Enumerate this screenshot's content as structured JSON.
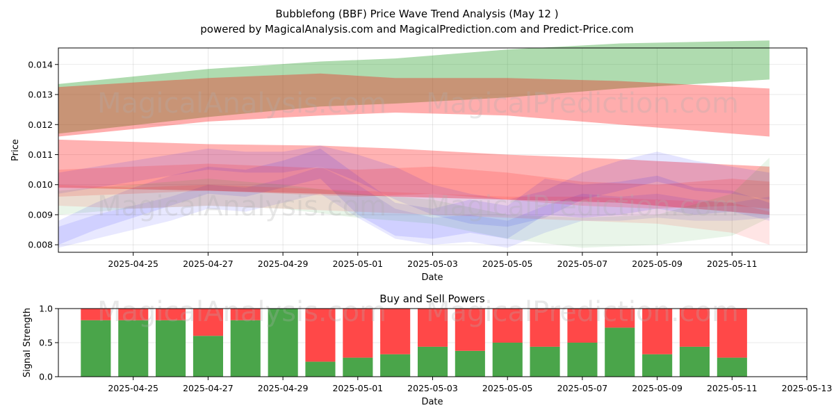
{
  "title": "Bubblefong (BBF) Price Wave Trend Analysis (May 12 )",
  "subtitle": "powered by MagicalAnalysis.com and MagicalPrediction.com and Predict-Price.com",
  "watermarks": [
    "MagicalAnalysis.com",
    "MagicalPrediction.com"
  ],
  "colors": {
    "green": "#2ca02c",
    "red": "#ff0000",
    "blue": "#0000ff",
    "buy": "#4aa54a",
    "sell": "#ff4848"
  },
  "chart_data": [
    {
      "type": "area",
      "xlabel": "Date",
      "ylabel": "Price",
      "grid": true,
      "xlim": [
        "2025-04-23",
        "2025-05-13"
      ],
      "ylim": [
        0.00775,
        0.01455
      ],
      "xticks": [
        "2025-04-25",
        "2025-04-27",
        "2025-04-29",
        "2025-05-01",
        "2025-05-03",
        "2025-05-05",
        "2025-05-07",
        "2025-05-09",
        "2025-05-11"
      ],
      "yticks": [
        0.008,
        0.009,
        0.01,
        0.011,
        0.012,
        0.013,
        0.014
      ],
      "ytick_labels": [
        "0.008",
        "0.009",
        "0.010",
        "0.011",
        "0.012",
        "0.013",
        "0.014"
      ],
      "bands": [
        {
          "color": "green",
          "opacity": 0.38,
          "x": [
            "2025-04-23",
            "2025-04-27",
            "2025-04-30",
            "2025-05-02",
            "2025-05-05",
            "2025-05-08",
            "2025-05-12"
          ],
          "upper": [
            0.01335,
            0.01385,
            0.0141,
            0.0142,
            0.0145,
            0.0147,
            0.0148
          ],
          "lower": [
            0.0117,
            0.01225,
            0.0126,
            0.0127,
            0.0129,
            0.0132,
            0.0135
          ]
        },
        {
          "color": "red",
          "opacity": 0.32,
          "x": [
            "2025-04-23",
            "2025-04-27",
            "2025-04-30",
            "2025-05-02",
            "2025-05-05",
            "2025-05-08",
            "2025-05-12"
          ],
          "upper": [
            0.01325,
            0.01355,
            0.0137,
            0.01355,
            0.01355,
            0.01345,
            0.0132
          ],
          "lower": [
            0.0116,
            0.0121,
            0.0123,
            0.0124,
            0.0123,
            0.012,
            0.0116
          ]
        },
        {
          "color": "red",
          "opacity": 0.3,
          "x": [
            "2025-04-23",
            "2025-04-27",
            "2025-04-30",
            "2025-05-02",
            "2025-05-05",
            "2025-05-08",
            "2025-05-12"
          ],
          "upper": [
            0.0115,
            0.01135,
            0.0113,
            0.0112,
            0.011,
            0.01085,
            0.0106
          ],
          "lower": [
            0.0099,
            0.0098,
            0.0097,
            0.0096,
            0.0095,
            0.0094,
            0.009
          ]
        },
        {
          "color": "blue",
          "opacity": 0.1,
          "x": [
            "2025-04-23",
            "2025-04-24",
            "2025-04-25",
            "2025-04-26",
            "2025-04-27",
            "2025-04-28",
            "2025-04-29",
            "2025-04-30",
            "2025-05-01",
            "2025-05-02",
            "2025-05-03",
            "2025-05-04",
            "2025-05-05",
            "2025-05-06",
            "2025-05-07",
            "2025-05-08",
            "2025-05-09",
            "2025-05-10",
            "2025-05-11",
            "2025-05-12"
          ],
          "upper": [
            0.0088,
            0.0094,
            0.0099,
            0.0103,
            0.0106,
            0.0105,
            0.0108,
            0.0112,
            0.0103,
            0.0094,
            0.0092,
            0.0095,
            0.0093,
            0.0102,
            0.01,
            0.0101,
            0.0103,
            0.0099,
            0.0098,
            0.0094
          ],
          "lower": [
            0.008,
            0.0085,
            0.0089,
            0.0093,
            0.0097,
            0.0096,
            0.0099,
            0.0102,
            0.009,
            0.0083,
            0.0082,
            0.0084,
            0.0082,
            0.009,
            0.0089,
            0.009,
            0.0092,
            0.009,
            0.0091,
            0.0088
          ]
        },
        {
          "color": "blue",
          "opacity": 0.1,
          "x": [
            "2025-04-23",
            "2025-04-24",
            "2025-04-25",
            "2025-04-26",
            "2025-04-27",
            "2025-04-28",
            "2025-04-29",
            "2025-04-30",
            "2025-05-01",
            "2025-05-02",
            "2025-05-03",
            "2025-05-04",
            "2025-05-05",
            "2025-05-06",
            "2025-05-07",
            "2025-05-08",
            "2025-05-09",
            "2025-05-10",
            "2025-05-11",
            "2025-05-12"
          ],
          "upper": [
            0.0104,
            0.0106,
            0.0108,
            0.011,
            0.0112,
            0.0111,
            0.0111,
            0.0113,
            0.011,
            0.0106,
            0.01,
            0.0097,
            0.0095,
            0.0098,
            0.0104,
            0.0108,
            0.0111,
            0.0108,
            0.0106,
            0.0104
          ],
          "lower": [
            0.0097,
            0.0099,
            0.0101,
            0.0103,
            0.0105,
            0.0104,
            0.0104,
            0.0106,
            0.0101,
            0.0095,
            0.009,
            0.0087,
            0.0086,
            0.0089,
            0.0095,
            0.0098,
            0.0101,
            0.0098,
            0.0097,
            0.0095
          ]
        },
        {
          "color": "blue",
          "opacity": 0.09,
          "x": [
            "2025-04-23",
            "2025-04-24",
            "2025-04-25",
            "2025-04-26",
            "2025-04-27",
            "2025-04-28",
            "2025-04-29",
            "2025-04-30",
            "2025-05-01",
            "2025-05-02",
            "2025-05-03",
            "2025-05-04",
            "2025-05-05",
            "2025-05-06",
            "2025-05-07",
            "2025-05-08",
            "2025-05-09",
            "2025-05-10",
            "2025-05-11",
            "2025-05-12"
          ],
          "upper": [
            0.0086,
            0.009,
            0.0093,
            0.0096,
            0.01,
            0.0099,
            0.0102,
            0.0106,
            0.01,
            0.0092,
            0.0089,
            0.009,
            0.0088,
            0.0093,
            0.0097,
            0.0096,
            0.0097,
            0.0095,
            0.0094,
            0.0096
          ],
          "lower": [
            0.0079,
            0.0082,
            0.0085,
            0.0088,
            0.0092,
            0.0091,
            0.0094,
            0.0097,
            0.0089,
            0.0082,
            0.008,
            0.0081,
            0.0079,
            0.0084,
            0.0088,
            0.0088,
            0.0089,
            0.0088,
            0.0088,
            0.0089
          ]
        },
        {
          "color": "red",
          "opacity": 0.14,
          "x": [
            "2025-04-23",
            "2025-04-25",
            "2025-04-27",
            "2025-04-29",
            "2025-05-01",
            "2025-05-03",
            "2025-05-05",
            "2025-05-07",
            "2025-05-09",
            "2025-05-11",
            "2025-05-12"
          ],
          "upper": [
            0.0105,
            0.0106,
            0.0107,
            0.0106,
            0.0105,
            0.0106,
            0.0104,
            0.0101,
            0.01,
            0.0102,
            0.0101
          ],
          "lower": [
            0.0096,
            0.0097,
            0.0098,
            0.0097,
            0.0096,
            0.0097,
            0.0095,
            0.0093,
            0.0092,
            0.0093,
            0.0092
          ]
        },
        {
          "color": "green",
          "opacity": 0.1,
          "x": [
            "2025-04-23",
            "2025-04-25",
            "2025-04-27",
            "2025-04-29",
            "2025-05-01",
            "2025-05-03",
            "2025-05-05",
            "2025-05-07",
            "2025-05-09",
            "2025-05-11",
            "2025-05-12"
          ],
          "upper": [
            0.0098,
            0.01,
            0.0102,
            0.01,
            0.0097,
            0.0095,
            0.009,
            0.0089,
            0.009,
            0.0097,
            0.0109
          ],
          "lower": [
            0.009,
            0.0092,
            0.0093,
            0.0092,
            0.0089,
            0.0087,
            0.0082,
            0.0079,
            0.008,
            0.0083,
            0.0089
          ]
        },
        {
          "color": "red",
          "opacity": 0.1,
          "x": [
            "2025-04-23",
            "2025-04-25",
            "2025-04-27",
            "2025-04-29",
            "2025-05-01",
            "2025-05-03",
            "2025-05-05",
            "2025-05-07",
            "2025-05-09",
            "2025-05-11",
            "2025-05-12"
          ],
          "upper": [
            0.01,
            0.0099,
            0.01,
            0.0099,
            0.0098,
            0.0097,
            0.0096,
            0.0096,
            0.0095,
            0.0094,
            0.0091
          ],
          "lower": [
            0.0093,
            0.0092,
            0.0093,
            0.0092,
            0.0091,
            0.009,
            0.0089,
            0.0088,
            0.0087,
            0.0084,
            0.008
          ]
        }
      ]
    },
    {
      "type": "bar",
      "title": "Buy and Sell Powers",
      "xlabel": "Date",
      "ylabel": "Signal Strength",
      "grid": true,
      "xlim": [
        "2025-04-23",
        "2025-05-13"
      ],
      "ylim": [
        0,
        1.0
      ],
      "xticks": [
        "2025-04-25",
        "2025-04-27",
        "2025-04-29",
        "2025-05-01",
        "2025-05-03",
        "2025-05-05",
        "2025-05-07",
        "2025-05-09",
        "2025-05-11",
        "2025-05-13"
      ],
      "yticks": [
        0.0,
        0.5,
        1.0
      ],
      "ytick_labels": [
        "0.0",
        "0.5",
        "1.0"
      ],
      "categories": [
        "2025-04-24",
        "2025-04-25",
        "2025-04-26",
        "2025-04-27",
        "2025-04-28",
        "2025-04-29",
        "2025-04-30",
        "2025-05-01",
        "2025-05-02",
        "2025-05-03",
        "2025-05-04",
        "2025-05-05",
        "2025-05-06",
        "2025-05-07",
        "2025-05-08",
        "2025-05-09",
        "2025-05-10",
        "2025-05-11",
        "2025-05-12"
      ],
      "series": [
        {
          "color": "buy",
          "values": [
            0.83,
            0.83,
            0.83,
            0.6,
            0.83,
            1.0,
            0.22,
            0.28,
            0.33,
            0.44,
            0.38,
            0.5,
            0.44,
            0.5,
            0.72,
            0.33,
            0.44,
            0.28,
            0.0
          ]
        },
        {
          "color": "sell",
          "values": [
            0.17,
            0.17,
            0.17,
            0.4,
            0.17,
            0.0,
            0.78,
            0.72,
            0.67,
            0.56,
            0.62,
            0.5,
            0.56,
            0.5,
            0.28,
            0.67,
            0.56,
            0.72,
            0.0
          ]
        }
      ]
    }
  ]
}
